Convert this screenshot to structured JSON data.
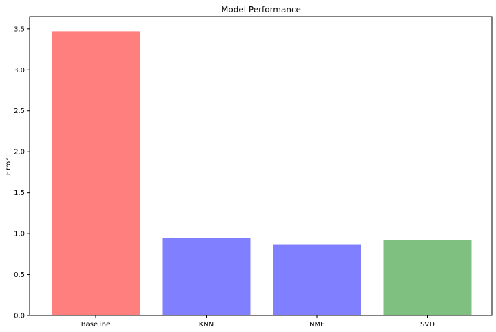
{
  "chart_data": {
    "type": "bar",
    "title": "Model Performance",
    "xlabel": "",
    "ylabel": "Error",
    "categories": [
      "Baseline",
      "KNN",
      "NMF",
      "SVD"
    ],
    "values": [
      3.47,
      0.95,
      0.87,
      0.92
    ],
    "bar_colors": [
      "#ff7f7f",
      "#7f7fff",
      "#7f7fff",
      "#7fbf7f"
    ],
    "ylim": [
      0,
      3.65
    ],
    "yticks": [
      "0.0",
      "0.5",
      "1.0",
      "1.5",
      "2.0",
      "2.5",
      "3.0",
      "3.5"
    ],
    "grid": false
  }
}
